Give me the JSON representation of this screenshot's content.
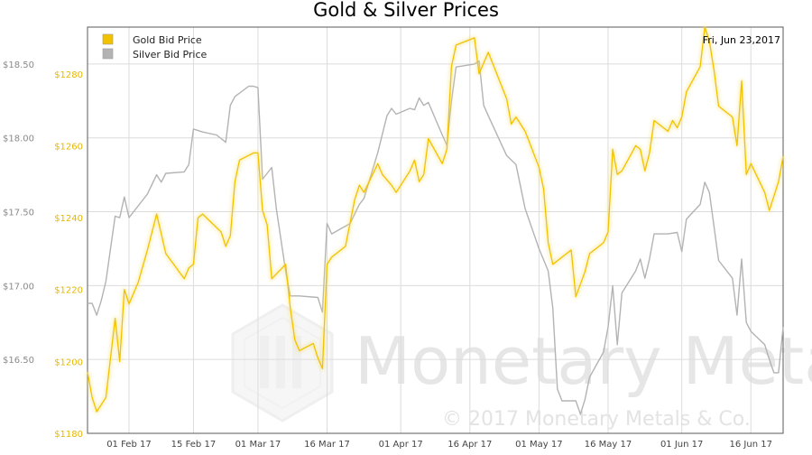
{
  "chart_data": {
    "type": "line",
    "title": "Gold & Silver Prices",
    "date_label": "Fri, Jun 23,2017",
    "watermark": {
      "brand": "Monetary Metals",
      "copyright": "© 2017 Monetary Metals & Co."
    },
    "legend": {
      "position": "top-left",
      "entries": [
        {
          "name": "Gold Bid Price",
          "color": "#f2c200"
        },
        {
          "name": "Silver Bid Price",
          "color": "#b3b3b3"
        }
      ]
    },
    "x_axis": {
      "start": "2017-01-23",
      "end": "2017-06-23",
      "ticks": [
        {
          "label": "01 Feb 17",
          "date": "2017-02-01"
        },
        {
          "label": "15 Feb 17",
          "date": "2017-02-15"
        },
        {
          "label": "01 Mar 17",
          "date": "2017-03-01"
        },
        {
          "label": "16 Mar 17",
          "date": "2017-03-16"
        },
        {
          "label": "01 Apr 17",
          "date": "2017-04-01"
        },
        {
          "label": "16 Apr 17",
          "date": "2017-04-16"
        },
        {
          "label": "01 May 17",
          "date": "2017-05-01"
        },
        {
          "label": "16 May 17",
          "date": "2017-05-16"
        },
        {
          "label": "01 Jun 17",
          "date": "2017-06-01"
        },
        {
          "label": "16 Jun 17",
          "date": "2017-06-16"
        }
      ]
    },
    "y_axis_silver": {
      "range": [
        16.0,
        18.75
      ],
      "ticks": [
        {
          "label": "$16.50",
          "value": 16.5
        },
        {
          "label": "$17.00",
          "value": 17.0
        },
        {
          "label": "$17.50",
          "value": 17.5
        },
        {
          "label": "$18.00",
          "value": 18.0
        },
        {
          "label": "$18.50",
          "value": 18.5
        }
      ]
    },
    "y_axis_gold": {
      "range": [
        1180,
        1293
      ],
      "ticks": [
        {
          "label": "$1180",
          "value": 1180
        },
        {
          "label": "$1200",
          "value": 1200
        },
        {
          "label": "$1220",
          "value": 1220
        },
        {
          "label": "$1240",
          "value": 1240
        },
        {
          "label": "$1260",
          "value": 1260
        },
        {
          "label": "$1280",
          "value": 1280
        }
      ]
    },
    "grid": true,
    "series": [
      {
        "name": "Gold Bid Price",
        "axis": "gold",
        "color": "#f2c200",
        "points": [
          [
            "2017-01-23",
            1197
          ],
          [
            "2017-01-24",
            1190
          ],
          [
            "2017-01-25",
            1186
          ],
          [
            "2017-01-26",
            1188
          ],
          [
            "2017-01-27",
            1190
          ],
          [
            "2017-01-29",
            1212
          ],
          [
            "2017-01-30",
            1200
          ],
          [
            "2017-01-31",
            1220
          ],
          [
            "2017-02-01",
            1216
          ],
          [
            "2017-02-03",
            1222
          ],
          [
            "2017-02-05",
            1231
          ],
          [
            "2017-02-07",
            1241
          ],
          [
            "2017-02-09",
            1230
          ],
          [
            "2017-02-13",
            1223
          ],
          [
            "2017-02-14",
            1226
          ],
          [
            "2017-02-15",
            1227
          ],
          [
            "2017-02-16",
            1240
          ],
          [
            "2017-02-17",
            1241
          ],
          [
            "2017-02-21",
            1236
          ],
          [
            "2017-02-22",
            1232
          ],
          [
            "2017-02-23",
            1235
          ],
          [
            "2017-02-24",
            1250
          ],
          [
            "2017-02-25",
            1256
          ],
          [
            "2017-02-28",
            1258
          ],
          [
            "2017-03-01",
            1258
          ],
          [
            "2017-03-02",
            1242
          ],
          [
            "2017-03-03",
            1238
          ],
          [
            "2017-03-04",
            1223
          ],
          [
            "2017-03-07",
            1227
          ],
          [
            "2017-03-08",
            1215
          ],
          [
            "2017-03-09",
            1206
          ],
          [
            "2017-03-10",
            1203
          ],
          [
            "2017-03-13",
            1205
          ],
          [
            "2017-03-14",
            1201
          ],
          [
            "2017-03-15",
            1198
          ],
          [
            "2017-03-16",
            1227
          ],
          [
            "2017-03-17",
            1229
          ],
          [
            "2017-03-20",
            1232
          ],
          [
            "2017-03-22",
            1245
          ],
          [
            "2017-03-23",
            1249
          ],
          [
            "2017-03-24",
            1247
          ],
          [
            "2017-03-27",
            1255
          ],
          [
            "2017-03-28",
            1252
          ],
          [
            "2017-03-30",
            1249
          ],
          [
            "2017-03-31",
            1247
          ],
          [
            "2017-04-03",
            1253
          ],
          [
            "2017-04-04",
            1256
          ],
          [
            "2017-04-05",
            1250
          ],
          [
            "2017-04-06",
            1252
          ],
          [
            "2017-04-07",
            1262
          ],
          [
            "2017-04-10",
            1255
          ],
          [
            "2017-04-11",
            1259
          ],
          [
            "2017-04-12",
            1282
          ],
          [
            "2017-04-13",
            1288
          ],
          [
            "2017-04-17",
            1290
          ],
          [
            "2017-04-18",
            1280
          ],
          [
            "2017-04-20",
            1286
          ],
          [
            "2017-04-24",
            1273
          ],
          [
            "2017-04-25",
            1266
          ],
          [
            "2017-04-26",
            1268
          ],
          [
            "2017-04-27",
            1266
          ],
          [
            "2017-04-28",
            1264
          ],
          [
            "2017-05-01",
            1254
          ],
          [
            "2017-05-02",
            1248
          ],
          [
            "2017-05-03",
            1233
          ],
          [
            "2017-05-04",
            1227
          ],
          [
            "2017-05-08",
            1231
          ],
          [
            "2017-05-09",
            1218
          ],
          [
            "2017-05-11",
            1225
          ],
          [
            "2017-05-12",
            1230
          ],
          [
            "2017-05-15",
            1233
          ],
          [
            "2017-05-16",
            1236
          ],
          [
            "2017-05-17",
            1259
          ],
          [
            "2017-05-18",
            1252
          ],
          [
            "2017-05-19",
            1253
          ],
          [
            "2017-05-22",
            1260
          ],
          [
            "2017-05-23",
            1259
          ],
          [
            "2017-05-24",
            1253
          ],
          [
            "2017-05-25",
            1258
          ],
          [
            "2017-05-26",
            1267
          ],
          [
            "2017-05-29",
            1264
          ],
          [
            "2017-05-30",
            1267
          ],
          [
            "2017-05-31",
            1265
          ],
          [
            "2017-06-01",
            1268
          ],
          [
            "2017-06-02",
            1275
          ],
          [
            "2017-06-05",
            1282
          ],
          [
            "2017-06-06",
            1293
          ],
          [
            "2017-06-07",
            1289
          ],
          [
            "2017-06-08",
            1281
          ],
          [
            "2017-06-09",
            1271
          ],
          [
            "2017-06-12",
            1268
          ],
          [
            "2017-06-13",
            1260
          ],
          [
            "2017-06-14",
            1278
          ],
          [
            "2017-06-15",
            1252
          ],
          [
            "2017-06-16",
            1255
          ],
          [
            "2017-06-19",
            1247
          ],
          [
            "2017-06-20",
            1242
          ],
          [
            "2017-06-21",
            1246
          ],
          [
            "2017-06-22",
            1250
          ],
          [
            "2017-06-23",
            1257
          ]
        ]
      },
      {
        "name": "Silver Bid Price",
        "axis": "silver",
        "color": "#b3b3b3",
        "points": [
          [
            "2017-01-23",
            16.88
          ],
          [
            "2017-01-24",
            16.88
          ],
          [
            "2017-01-25",
            16.8
          ],
          [
            "2017-01-26",
            16.9
          ],
          [
            "2017-01-27",
            17.03
          ],
          [
            "2017-01-29",
            17.47
          ],
          [
            "2017-01-30",
            17.46
          ],
          [
            "2017-01-31",
            17.6
          ],
          [
            "2017-02-01",
            17.46
          ],
          [
            "2017-02-03",
            17.54
          ],
          [
            "2017-02-05",
            17.62
          ],
          [
            "2017-02-07",
            17.75
          ],
          [
            "2017-02-08",
            17.7
          ],
          [
            "2017-02-09",
            17.76
          ],
          [
            "2017-02-13",
            17.77
          ],
          [
            "2017-02-14",
            17.82
          ],
          [
            "2017-02-15",
            18.06
          ],
          [
            "2017-02-17",
            18.04
          ],
          [
            "2017-02-20",
            18.02
          ],
          [
            "2017-02-22",
            17.97
          ],
          [
            "2017-02-23",
            18.22
          ],
          [
            "2017-02-24",
            18.28
          ],
          [
            "2017-02-27",
            18.35
          ],
          [
            "2017-02-28",
            18.35
          ],
          [
            "2017-03-01",
            18.34
          ],
          [
            "2017-03-02",
            17.72
          ],
          [
            "2017-03-04",
            17.8
          ],
          [
            "2017-03-05",
            17.52
          ],
          [
            "2017-03-07",
            17.1
          ],
          [
            "2017-03-08",
            16.93
          ],
          [
            "2017-03-10",
            16.93
          ],
          [
            "2017-03-14",
            16.92
          ],
          [
            "2017-03-15",
            16.82
          ],
          [
            "2017-03-16",
            17.42
          ],
          [
            "2017-03-17",
            17.35
          ],
          [
            "2017-03-21",
            17.42
          ],
          [
            "2017-03-23",
            17.55
          ],
          [
            "2017-03-24",
            17.59
          ],
          [
            "2017-03-27",
            17.9
          ],
          [
            "2017-03-29",
            18.15
          ],
          [
            "2017-03-30",
            18.2
          ],
          [
            "2017-03-31",
            18.16
          ],
          [
            "2017-04-03",
            18.2
          ],
          [
            "2017-04-04",
            18.19
          ],
          [
            "2017-04-05",
            18.27
          ],
          [
            "2017-04-06",
            18.22
          ],
          [
            "2017-04-07",
            18.24
          ],
          [
            "2017-04-10",
            18.02
          ],
          [
            "2017-04-11",
            17.95
          ],
          [
            "2017-04-12",
            18.25
          ],
          [
            "2017-04-13",
            18.48
          ],
          [
            "2017-04-17",
            18.5
          ],
          [
            "2017-04-18",
            18.52
          ],
          [
            "2017-04-19",
            18.22
          ],
          [
            "2017-04-20",
            18.15
          ],
          [
            "2017-04-24",
            17.88
          ],
          [
            "2017-04-25",
            17.85
          ],
          [
            "2017-04-26",
            17.82
          ],
          [
            "2017-04-28",
            17.52
          ],
          [
            "2017-05-01",
            17.25
          ],
          [
            "2017-05-03",
            17.1
          ],
          [
            "2017-05-04",
            16.85
          ],
          [
            "2017-05-05",
            16.3
          ],
          [
            "2017-05-06",
            16.22
          ],
          [
            "2017-05-09",
            16.22
          ],
          [
            "2017-05-10",
            16.13
          ],
          [
            "2017-05-11",
            16.23
          ],
          [
            "2017-05-12",
            16.38
          ],
          [
            "2017-05-15",
            16.55
          ],
          [
            "2017-05-16",
            16.72
          ],
          [
            "2017-05-17",
            17.0
          ],
          [
            "2017-05-18",
            16.6
          ],
          [
            "2017-05-19",
            16.95
          ],
          [
            "2017-05-22",
            17.1
          ],
          [
            "2017-05-23",
            17.18
          ],
          [
            "2017-05-24",
            17.05
          ],
          [
            "2017-05-25",
            17.18
          ],
          [
            "2017-05-26",
            17.35
          ],
          [
            "2017-05-29",
            17.35
          ],
          [
            "2017-05-31",
            17.36
          ],
          [
            "2017-06-01",
            17.23
          ],
          [
            "2017-06-02",
            17.45
          ],
          [
            "2017-06-05",
            17.55
          ],
          [
            "2017-06-06",
            17.7
          ],
          [
            "2017-06-07",
            17.63
          ],
          [
            "2017-06-08",
            17.4
          ],
          [
            "2017-06-09",
            17.17
          ],
          [
            "2017-06-12",
            17.05
          ],
          [
            "2017-06-13",
            16.8
          ],
          [
            "2017-06-14",
            17.18
          ],
          [
            "2017-06-15",
            16.75
          ],
          [
            "2017-06-16",
            16.69
          ],
          [
            "2017-06-19",
            16.6
          ],
          [
            "2017-06-20",
            16.5
          ],
          [
            "2017-06-21",
            16.41
          ],
          [
            "2017-06-22",
            16.41
          ],
          [
            "2017-06-23",
            16.72
          ]
        ]
      }
    ]
  }
}
